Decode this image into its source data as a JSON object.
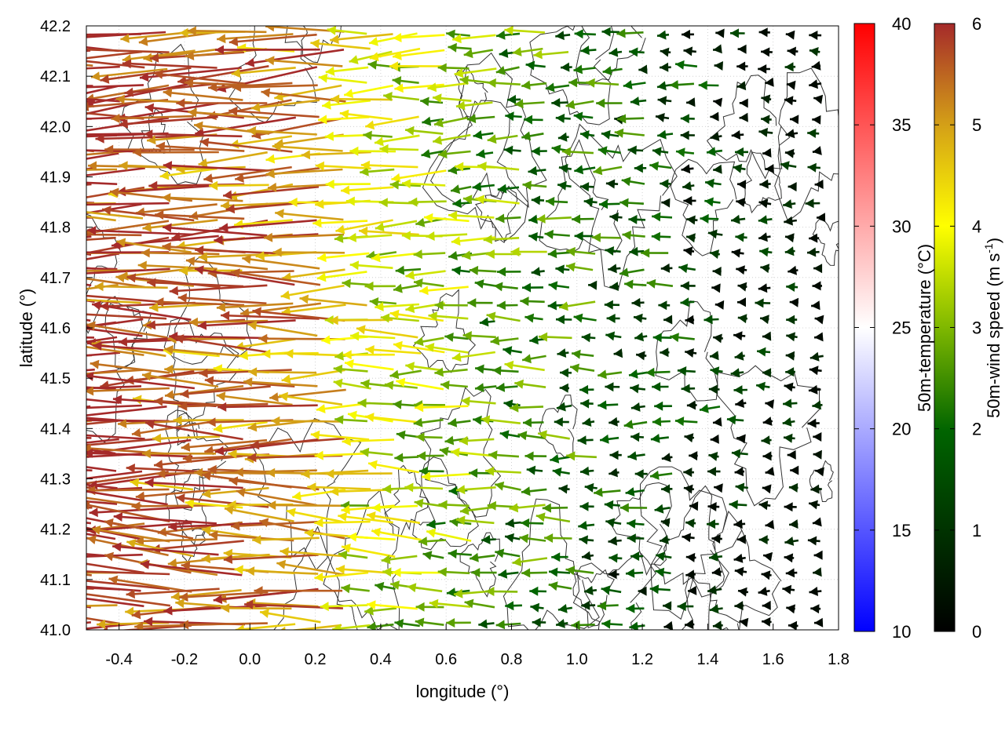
{
  "chart_data": {
    "type": "vector-field",
    "description": "wind vectors colored by 50m wind speed with topography contours",
    "xlabel": "longitude (°)",
    "ylabel": "latitude (°)",
    "xlim": [
      -0.5,
      1.8
    ],
    "ylim": [
      41.0,
      42.2
    ],
    "xticks": [
      -0.4,
      -0.2,
      0.0,
      0.2,
      0.4,
      0.6,
      0.8,
      1.0,
      1.2,
      1.4,
      1.6,
      1.8
    ],
    "xtick_labels": [
      "-0.4",
      "-0.2",
      "0.0",
      "0.2",
      "0.4",
      "0.6",
      "0.8",
      "1.0",
      "1.2",
      "1.4",
      "1.6",
      "1.8"
    ],
    "yticks": [
      41.0,
      41.1,
      41.2,
      41.3,
      41.4,
      41.5,
      41.6,
      41.7,
      41.8,
      41.9,
      42.0,
      42.1,
      42.2
    ],
    "ytick_labels": [
      "41.0",
      "41.1",
      "41.2",
      "41.3",
      "41.4",
      "41.5",
      "41.6",
      "41.7",
      "41.8",
      "41.9",
      "42.0",
      "42.1",
      "42.2"
    ],
    "grid": true,
    "dominant_flow": "westward (easterly wind)",
    "colorbars": [
      {
        "name": "temperature",
        "label": "50m-temperature (°C)",
        "range": [
          10,
          40
        ],
        "tick_values": [
          10,
          15,
          20,
          25,
          30,
          35,
          40
        ],
        "tick_labels": [
          "10",
          "15",
          "20",
          "25",
          "30",
          "35",
          "40"
        ],
        "colors": [
          "#0000ff",
          "#ffffff",
          "#ff0000"
        ]
      },
      {
        "name": "wind-speed",
        "label_main": "50m-wind speed (m s",
        "label_sup": "-1",
        "label_end": ")",
        "range": [
          0,
          6
        ],
        "tick_values": [
          0,
          1,
          2,
          3,
          4,
          5,
          6
        ],
        "tick_labels": [
          "0",
          "1",
          "2",
          "3",
          "4",
          "5",
          "6"
        ],
        "colors": [
          "#000000",
          "#006400",
          "#7fb800",
          "#ffff00",
          "#d4a017",
          "#c8781e",
          "#a52a2a"
        ]
      }
    ]
  }
}
